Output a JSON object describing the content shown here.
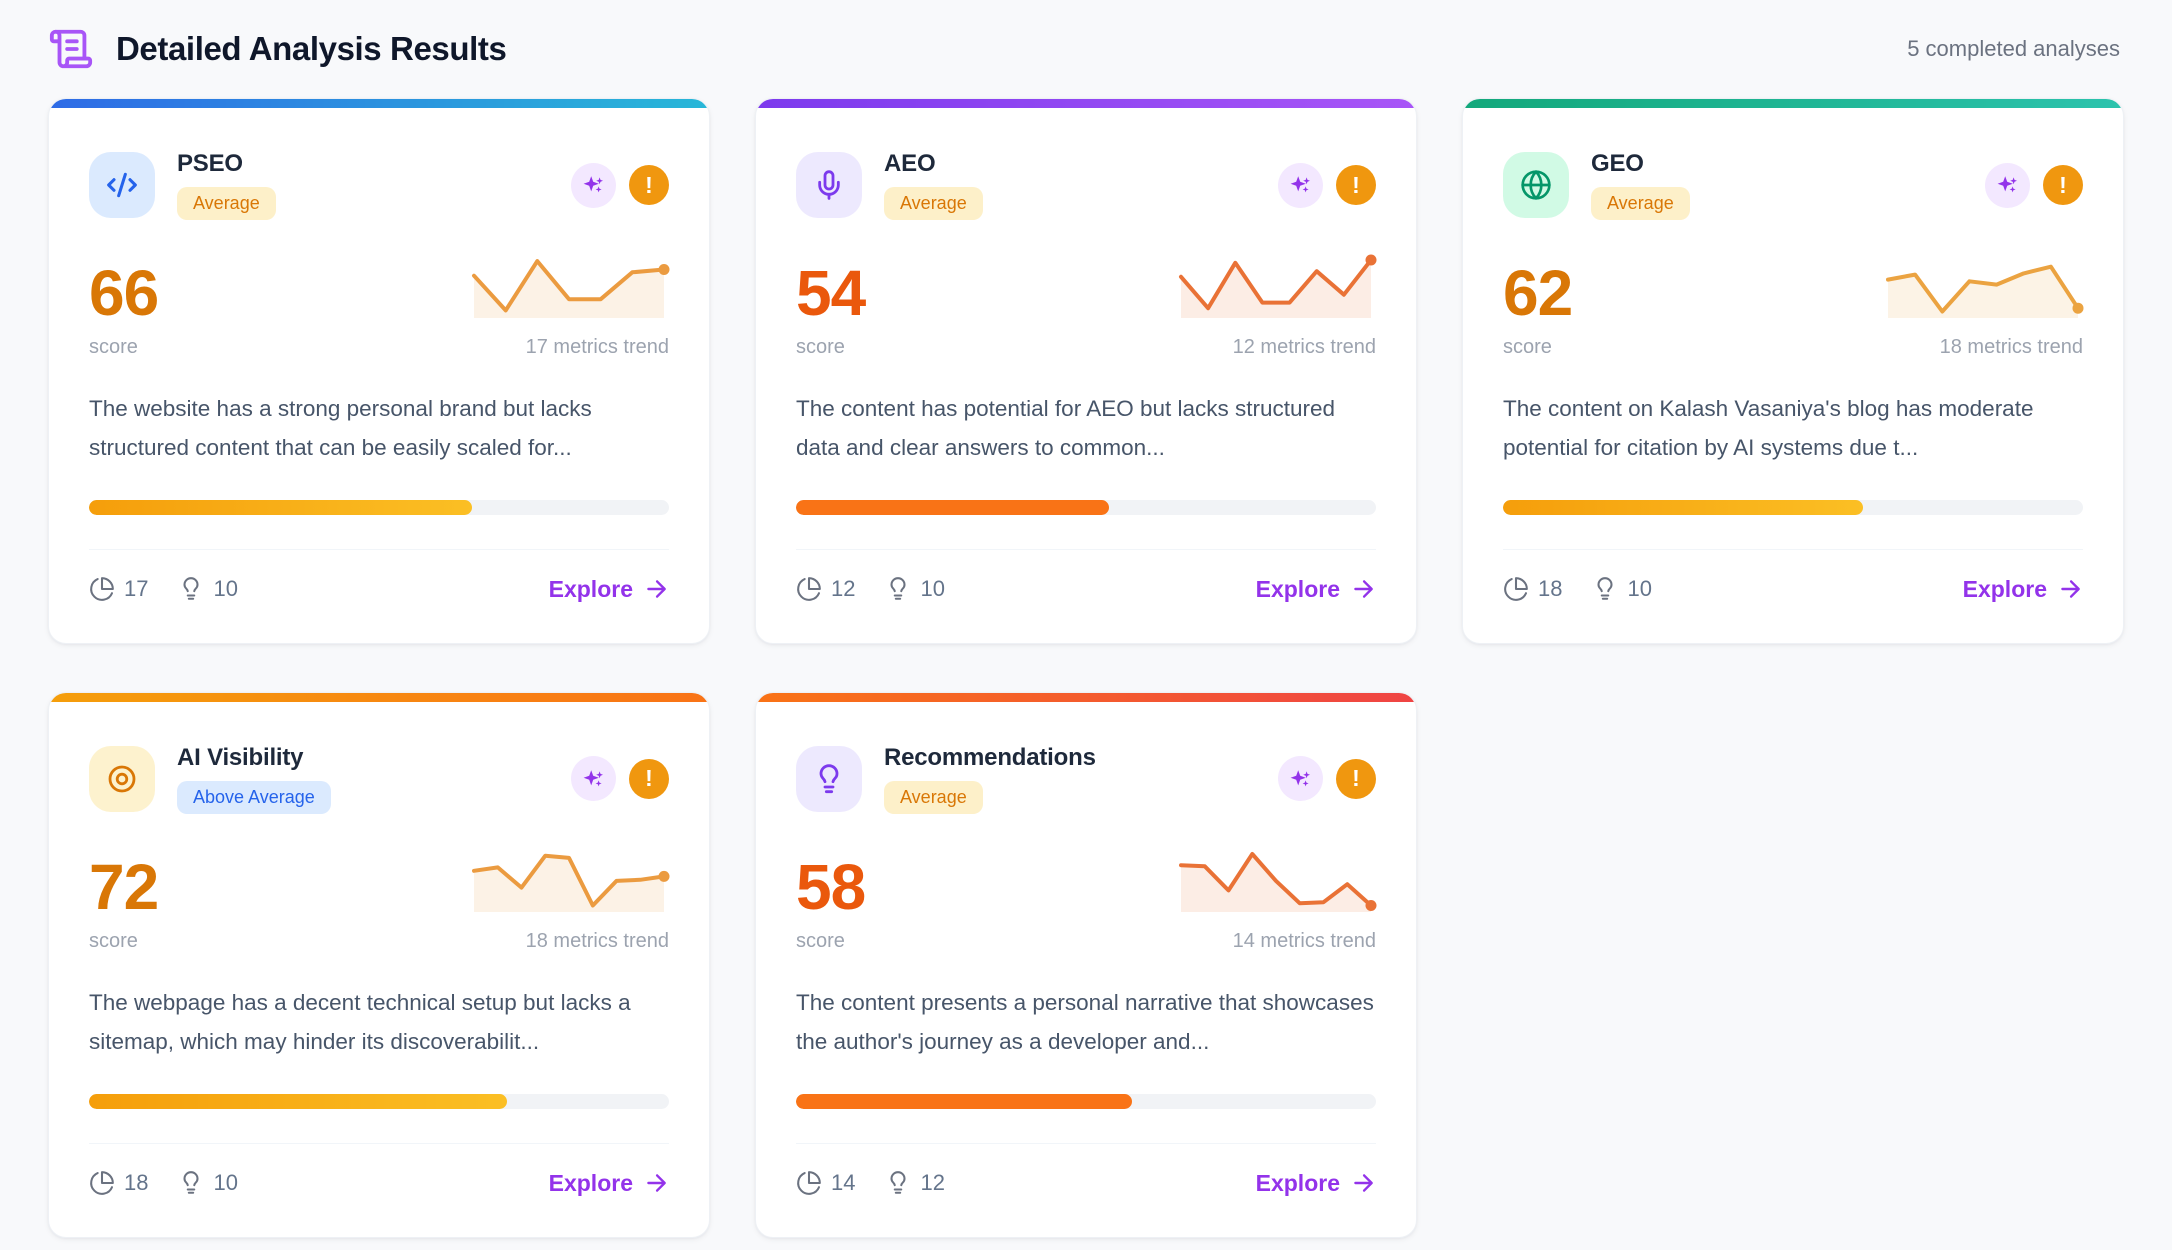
{
  "header": {
    "title": "Detailed Analysis Results",
    "completed_label": "5 completed analyses",
    "icon": "scroll-text-icon",
    "icon_color": "#a855f7"
  },
  "labels": {
    "score": "score",
    "explore": "Explore",
    "alert_glyph": "!"
  },
  "colors": {
    "accent_purple": "#9333ea",
    "alert_orange": "#f0970f",
    "page_background": "#f8f9fb"
  },
  "cards": [
    {
      "title": "PSEO",
      "badge": "Average",
      "badge_bg": "#fdf0c9",
      "badge_color": "#d97706",
      "icon": "code-icon",
      "icon_color": "#2563eb",
      "icon_bg": "#dbeafe",
      "topbar_from": "#2e6be6",
      "topbar_to": "#28b7d8",
      "score": "66",
      "score_color": "#d97706",
      "trend_label": "17 metrics trend",
      "trend_color": "#eb9b40",
      "trend_points": [
        72,
        10,
        98,
        30,
        30,
        78,
        83
      ],
      "description": "The website has a strong personal brand but lacks structured content that can be easily scaled for...",
      "progress_pct": 66,
      "progress_from": "#f59e0b",
      "progress_to": "#fbbf24",
      "metric_analyses": "17",
      "metric_insights": "10"
    },
    {
      "title": "AEO",
      "badge": "Average",
      "badge_bg": "#fdf0c9",
      "badge_color": "#d97706",
      "icon": "mic-icon",
      "icon_color": "#7c3aed",
      "icon_bg": "#ede9fe",
      "topbar_from": "#7c3aed",
      "topbar_to": "#a855f7",
      "score": "54",
      "score_color": "#ea580c",
      "trend_label": "12 metrics trend",
      "trend_color": "#e97236",
      "trend_points": [
        70,
        14,
        95,
        24,
        24,
        80,
        38,
        100
      ],
      "description": "The content has potential for AEO but lacks structured data and clear answers to common...",
      "progress_pct": 54,
      "progress_from": "#f97316",
      "progress_to": "#f97316",
      "metric_analyses": "12",
      "metric_insights": "10"
    },
    {
      "title": "GEO",
      "badge": "Average",
      "badge_bg": "#fdf0c9",
      "badge_color": "#d97706",
      "icon": "globe-icon",
      "icon_color": "#059669",
      "icon_bg": "#d1fae5",
      "topbar_from": "#13a87b",
      "topbar_to": "#2cc3ad",
      "score": "62",
      "score_color": "#d97706",
      "trend_label": "18 metrics trend",
      "trend_color": "#eba341",
      "trend_points": [
        65,
        74,
        8,
        62,
        56,
        76,
        88,
        14
      ],
      "description": "The content on Kalash Vasaniya's blog has moderate potential for citation by AI systems due t...",
      "progress_pct": 62,
      "progress_from": "#f59e0b",
      "progress_to": "#fbbf24",
      "metric_analyses": "18",
      "metric_insights": "10"
    },
    {
      "title": "AI Visibility",
      "badge": "Above Average",
      "badge_bg": "#dbeafe",
      "badge_color": "#2563eb",
      "icon": "target-icon",
      "icon_color": "#d97706",
      "icon_bg": "#fdf2ce",
      "topbar_from": "#f59e0b",
      "topbar_to": "#f97316",
      "score": "72",
      "score_color": "#d97706",
      "trend_label": "18 metrics trend",
      "trend_color": "#eb9b40",
      "trend_points": [
        70,
        76,
        40,
        97,
        93,
        8,
        52,
        54,
        60
      ],
      "description": "The webpage has a decent technical setup but lacks a sitemap, which may hinder its discoverabilit...",
      "progress_pct": 72,
      "progress_from": "#f59e0b",
      "progress_to": "#fbbf24",
      "metric_analyses": "18",
      "metric_insights": "10"
    },
    {
      "title": "Recommendations",
      "badge": "Average",
      "badge_bg": "#fdf0c9",
      "badge_color": "#d97706",
      "icon": "bulb-icon",
      "icon_color": "#7c3aed",
      "icon_bg": "#ede9fe",
      "topbar_from": "#f97316",
      "topbar_to": "#ef4444",
      "score": "58",
      "score_color": "#ea580c",
      "trend_label": "14 metrics trend",
      "trend_color": "#e97236",
      "trend_points": [
        80,
        78,
        35,
        100,
        52,
        12,
        14,
        46,
        8
      ],
      "description": "The content presents a personal narrative that showcases the author's journey as a developer and...",
      "progress_pct": 58,
      "progress_from": "#f97316",
      "progress_to": "#f97316",
      "metric_analyses": "14",
      "metric_insights": "12"
    }
  ]
}
